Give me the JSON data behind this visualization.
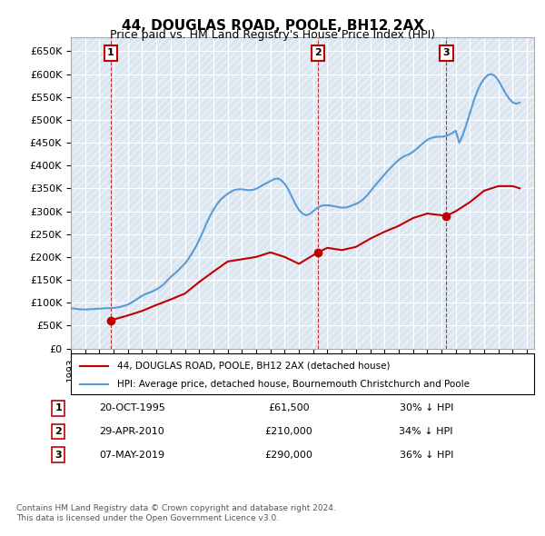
{
  "title": "44, DOUGLAS ROAD, POOLE, BH12 2AX",
  "subtitle": "Price paid vs. HM Land Registry's House Price Index (HPI)",
  "ylabel_ticks": [
    "£0",
    "£50K",
    "£100K",
    "£150K",
    "£200K",
    "£250K",
    "£300K",
    "£350K",
    "£400K",
    "£450K",
    "£500K",
    "£550K",
    "£600K",
    "£650K"
  ],
  "ytick_values": [
    0,
    50000,
    100000,
    150000,
    200000,
    250000,
    300000,
    350000,
    400000,
    450000,
    500000,
    550000,
    600000,
    650000
  ],
  "ylim": [
    0,
    680000
  ],
  "xlim_start": 1993.0,
  "xlim_end": 2025.5,
  "purchases": [
    {
      "year": 1995.8,
      "price": 61500,
      "label": "1"
    },
    {
      "year": 2010.33,
      "price": 210000,
      "label": "2"
    },
    {
      "year": 2019.35,
      "price": 290000,
      "label": "3"
    }
  ],
  "hpi_color": "#5b9bd5",
  "price_color": "#c00000",
  "purchase_marker_color": "#c00000",
  "background_color": "#dce6f1",
  "grid_color": "#ffffff",
  "legend_entries": [
    "44, DOUGLAS ROAD, POOLE, BH12 2AX (detached house)",
    "HPI: Average price, detached house, Bournemouth Christchurch and Poole"
  ],
  "table_rows": [
    {
      "num": "1",
      "date": "20-OCT-1995",
      "price": "£61,500",
      "hpi": "30% ↓ HPI"
    },
    {
      "num": "2",
      "date": "29-APR-2010",
      "price": "£210,000",
      "hpi": "34% ↓ HPI"
    },
    {
      "num": "3",
      "date": "07-MAY-2019",
      "price": "£290,000",
      "hpi": "36% ↓ HPI"
    }
  ],
  "footnote": "Contains HM Land Registry data © Crown copyright and database right 2024.\nThis data is licensed under the Open Government Licence v3.0.",
  "hpi_data_x": [
    1993.0,
    1993.25,
    1993.5,
    1993.75,
    1994.0,
    1994.25,
    1994.5,
    1994.75,
    1995.0,
    1995.25,
    1995.5,
    1995.75,
    1996.0,
    1996.25,
    1996.5,
    1996.75,
    1997.0,
    1997.25,
    1997.5,
    1997.75,
    1998.0,
    1998.25,
    1998.5,
    1998.75,
    1999.0,
    1999.25,
    1999.5,
    1999.75,
    2000.0,
    2000.25,
    2000.5,
    2000.75,
    2001.0,
    2001.25,
    2001.5,
    2001.75,
    2002.0,
    2002.25,
    2002.5,
    2002.75,
    2003.0,
    2003.25,
    2003.5,
    2003.75,
    2004.0,
    2004.25,
    2004.5,
    2004.75,
    2005.0,
    2005.25,
    2005.5,
    2005.75,
    2006.0,
    2006.25,
    2006.5,
    2006.75,
    2007.0,
    2007.25,
    2007.5,
    2007.75,
    2008.0,
    2008.25,
    2008.5,
    2008.75,
    2009.0,
    2009.25,
    2009.5,
    2009.75,
    2010.0,
    2010.25,
    2010.5,
    2010.75,
    2011.0,
    2011.25,
    2011.5,
    2011.75,
    2012.0,
    2012.25,
    2012.5,
    2012.75,
    2013.0,
    2013.25,
    2013.5,
    2013.75,
    2014.0,
    2014.25,
    2014.5,
    2014.75,
    2015.0,
    2015.25,
    2015.5,
    2015.75,
    2016.0,
    2016.25,
    2016.5,
    2016.75,
    2017.0,
    2017.25,
    2017.5,
    2017.75,
    2018.0,
    2018.25,
    2018.5,
    2018.75,
    2019.0,
    2019.25,
    2019.5,
    2019.75,
    2020.0,
    2020.25,
    2020.5,
    2020.75,
    2021.0,
    2021.25,
    2021.5,
    2021.75,
    2022.0,
    2022.25,
    2022.5,
    2022.75,
    2023.0,
    2023.25,
    2023.5,
    2023.75,
    2024.0,
    2024.25,
    2024.5
  ],
  "hpi_data_y": [
    88000,
    87000,
    86000,
    85500,
    85000,
    85500,
    86000,
    86500,
    87000,
    87500,
    88000,
    88000,
    88500,
    89500,
    91000,
    93000,
    96000,
    100000,
    105000,
    110000,
    115000,
    119000,
    122000,
    125000,
    129000,
    134000,
    140000,
    148000,
    156000,
    163000,
    170000,
    178000,
    186000,
    196000,
    208000,
    221000,
    237000,
    254000,
    272000,
    289000,
    303000,
    315000,
    325000,
    332000,
    338000,
    343000,
    347000,
    348000,
    348000,
    347000,
    346000,
    347000,
    349000,
    353000,
    358000,
    362000,
    366000,
    370000,
    372000,
    368000,
    360000,
    348000,
    332000,
    316000,
    303000,
    295000,
    291000,
    294000,
    300000,
    307000,
    311000,
    313000,
    313000,
    312000,
    311000,
    309000,
    308000,
    308000,
    310000,
    313000,
    316000,
    320000,
    326000,
    334000,
    343000,
    353000,
    362000,
    371000,
    380000,
    389000,
    397000,
    405000,
    412000,
    418000,
    422000,
    425000,
    430000,
    436000,
    443000,
    450000,
    456000,
    460000,
    462000,
    463000,
    463000,
    464000,
    467000,
    471000,
    476000,
    450000,
    467000,
    490000,
    515000,
    540000,
    562000,
    578000,
    590000,
    598000,
    600000,
    596000,
    586000,
    572000,
    558000,
    546000,
    538000,
    535000,
    538000
  ],
  "price_data_x": [
    1995.8,
    1995.8,
    1997.0,
    1998.0,
    1999.0,
    2000.0,
    2001.0,
    2002.0,
    2003.0,
    2004.0,
    2005.0,
    2006.0,
    2007.0,
    2008.0,
    2009.0,
    2010.33,
    2010.33,
    2011.0,
    2012.0,
    2013.0,
    2014.0,
    2015.0,
    2016.0,
    2017.0,
    2018.0,
    2019.35,
    2019.35,
    2020.0,
    2021.0,
    2022.0,
    2023.0,
    2024.0,
    2024.5
  ],
  "price_data_y": [
    61500,
    61500,
    72000,
    82000,
    95000,
    107000,
    120000,
    145000,
    168000,
    190000,
    195000,
    200000,
    210000,
    200000,
    185000,
    210000,
    210000,
    220000,
    215000,
    222000,
    240000,
    255000,
    268000,
    285000,
    295000,
    290000,
    290000,
    300000,
    320000,
    345000,
    355000,
    355000,
    350000
  ]
}
